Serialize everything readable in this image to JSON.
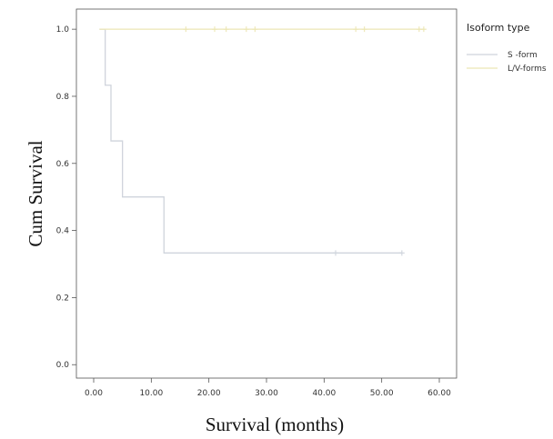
{
  "chart_data": {
    "type": "line",
    "title": "",
    "xlabel": "Survival (months)",
    "ylabel": "Cum Survival",
    "xlim": [
      -3,
      63
    ],
    "ylim": [
      -0.04,
      1.06
    ],
    "x_ticks": [
      0,
      10,
      20,
      30,
      40,
      50,
      60
    ],
    "x_tick_labels": [
      "0.00",
      "10.00",
      "20.00",
      "30.00",
      "40.00",
      "50.00",
      "60.00"
    ],
    "y_ticks": [
      0.0,
      0.2,
      0.4,
      0.6,
      0.8,
      1.0
    ],
    "y_tick_labels": [
      "0.0",
      "0.2",
      "0.4",
      "0.6",
      "0.8",
      "1.0"
    ],
    "grid": false,
    "legend": {
      "title": "Isoform type",
      "position": "top-right"
    },
    "series": [
      {
        "name": "S -form",
        "color": "#cfd4dc",
        "steps": [
          [
            1,
            1.0
          ],
          [
            2,
            0.833
          ],
          [
            3,
            0.667
          ],
          [
            5,
            0.5
          ],
          [
            12.2,
            0.333
          ],
          [
            53.5,
            0.333
          ]
        ],
        "censored": [
          [
            42,
            0.333
          ],
          [
            53.5,
            0.333
          ]
        ]
      },
      {
        "name": "L/V-forms",
        "color": "#ece6b4",
        "steps": [
          [
            1,
            1.0
          ],
          [
            57.3,
            1.0
          ]
        ],
        "censored": [
          [
            16,
            1.0
          ],
          [
            21,
            1.0
          ],
          [
            23,
            1.0
          ],
          [
            26.5,
            1.0
          ],
          [
            28,
            1.0
          ],
          [
            45.5,
            1.0
          ],
          [
            47,
            1.0
          ],
          [
            56.5,
            1.0
          ],
          [
            57.3,
            1.0
          ]
        ]
      }
    ]
  }
}
